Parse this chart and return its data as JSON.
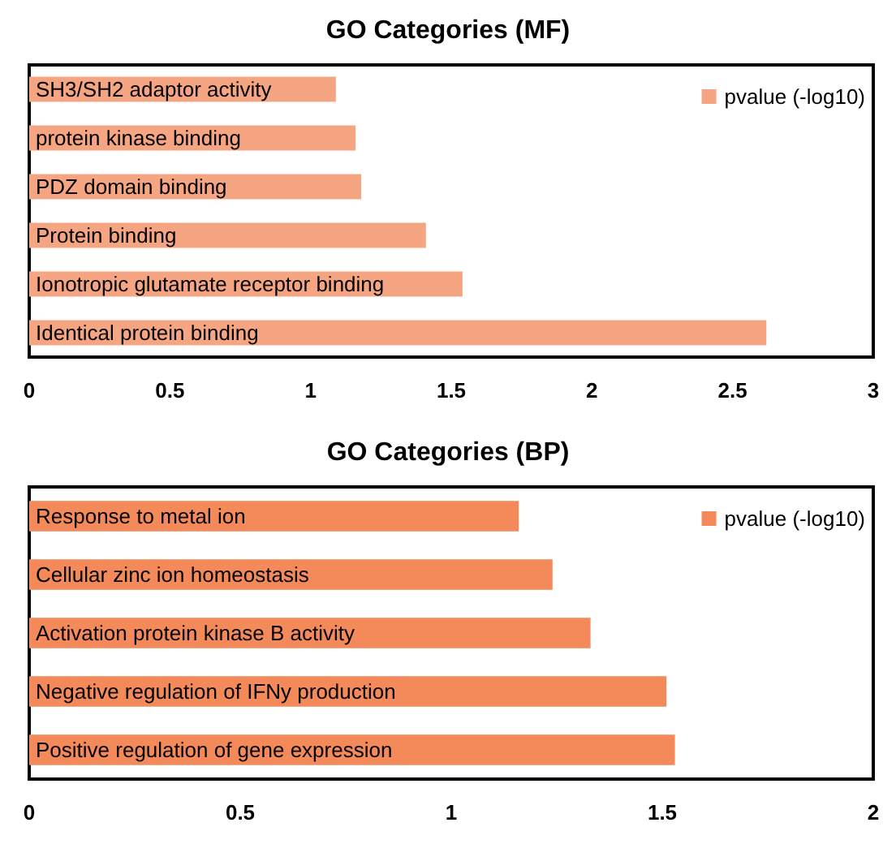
{
  "chart_data": [
    {
      "type": "bar",
      "title": "GO Categories (MF)",
      "orientation": "horizontal",
      "categories": [
        "SH3/SH2 adaptor activity",
        "protein kinase binding",
        "PDZ domain binding",
        "Protein binding",
        "Ionotropic glutamate receptor binding",
        "Identical protein binding"
      ],
      "series": [
        {
          "name": "pvalue (-log10)",
          "color": "#f5a582",
          "values": [
            1.09,
            1.16,
            1.18,
            1.41,
            1.54,
            2.62
          ]
        }
      ],
      "xlim": [
        0,
        3
      ],
      "xticks": [
        0,
        0.5,
        1,
        1.5,
        2,
        2.5,
        3
      ],
      "grid": false,
      "legend": "top right"
    },
    {
      "type": "bar",
      "title": "GO Categories (BP)",
      "orientation": "horizontal",
      "categories": [
        "Response to metal ion",
        "Cellular zinc ion homeostasis",
        "Activation protein kinase B activity",
        "Negative regulation of IFNy production",
        "Positive regulation of gene expression"
      ],
      "series": [
        {
          "name": "pvalue (-log10)",
          "color": "#f4895a",
          "values": [
            1.16,
            1.24,
            1.33,
            1.51,
            1.53
          ]
        }
      ],
      "xlim": [
        0,
        2
      ],
      "xticks": [
        0,
        0.5,
        1,
        1.5,
        2
      ],
      "grid": false,
      "legend": "top right"
    }
  ]
}
